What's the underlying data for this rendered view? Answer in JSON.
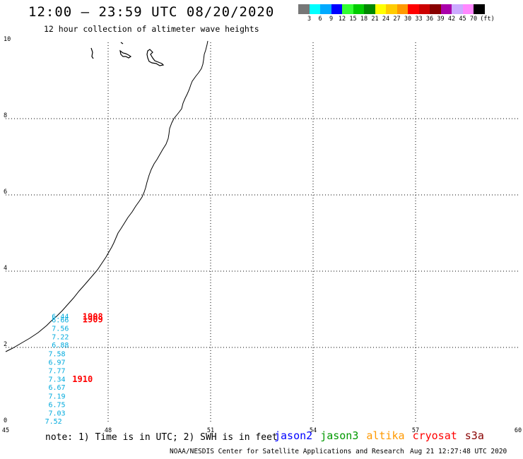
{
  "header": {
    "title": "12:00 – 23:59 UTC 08/20/2020",
    "subtitle": "12 hour collection of altimeter wave heights"
  },
  "legend": {
    "unit": "(ft)",
    "bins": [
      {
        "label": "3",
        "color": "#777777"
      },
      {
        "label": "6",
        "color": "#00ffff"
      },
      {
        "label": "9",
        "color": "#00aaff"
      },
      {
        "label": "12",
        "color": "#0000ff"
      },
      {
        "label": "15",
        "color": "#33ff33"
      },
      {
        "label": "18",
        "color": "#00cc00"
      },
      {
        "label": "21",
        "color": "#008800"
      },
      {
        "label": "24",
        "color": "#ffff00"
      },
      {
        "label": "27",
        "color": "#ffcc00"
      },
      {
        "label": "30",
        "color": "#ff9900"
      },
      {
        "label": "33",
        "color": "#ff0000"
      },
      {
        "label": "36",
        "color": "#cc0000"
      },
      {
        "label": "39",
        "color": "#880000"
      },
      {
        "label": "42",
        "color": "#aa00aa"
      },
      {
        "label": "45",
        "color": "#ccaaff"
      },
      {
        "label": "70",
        "color": "#ff88ff"
      },
      {
        "label": "",
        "color": "#000000"
      }
    ]
  },
  "map": {
    "x_axis": {
      "ticks": [
        "45",
        "48",
        "51",
        "54",
        "57",
        "60"
      ],
      "range": [
        45,
        60
      ]
    },
    "y_axis": {
      "ticks": [
        "0",
        "2",
        "4",
        "6",
        "8",
        "10"
      ],
      "range": [
        0,
        10
      ]
    },
    "swh_readings": [
      {
        "value": "6.44",
        "lon": 46.6,
        "lat": 2.82
      },
      {
        "value": "6.66",
        "lon": 46.6,
        "lat": 2.73
      },
      {
        "value": "7.56",
        "lon": 46.6,
        "lat": 2.51
      },
      {
        "value": "7.22",
        "lon": 46.6,
        "lat": 2.29
      },
      {
        "value": "6.88",
        "lon": 46.6,
        "lat": 2.07
      },
      {
        "value": "7.58",
        "lon": 46.5,
        "lat": 1.84
      },
      {
        "value": "6.97",
        "lon": 46.5,
        "lat": 1.62
      },
      {
        "value": "7.77",
        "lon": 46.5,
        "lat": 1.4
      },
      {
        "value": "7.34",
        "lon": 46.5,
        "lat": 1.18
      },
      {
        "value": "6.67",
        "lon": 46.5,
        "lat": 0.96
      },
      {
        "value": "7.19",
        "lon": 46.5,
        "lat": 0.73
      },
      {
        "value": "6.75",
        "lon": 46.5,
        "lat": 0.51
      },
      {
        "value": "7.03",
        "lon": 46.5,
        "lat": 0.29
      },
      {
        "value": "7.52",
        "lon": 46.4,
        "lat": 0.07
      }
    ],
    "time_labels": [
      {
        "value": "1908",
        "lon": 47.55,
        "lat": 2.81
      },
      {
        "value": "1909",
        "lon": 47.55,
        "lat": 2.73
      },
      {
        "value": "1910",
        "lon": 47.25,
        "lat": 1.17
      }
    ]
  },
  "footer": {
    "note": "note: 1) Time is in UTC; 2) SWH is in feet",
    "satellites": [
      {
        "name": "jason2",
        "color": "#0000ff"
      },
      {
        "name": "jason3",
        "color": "#009900"
      },
      {
        "name": "altika",
        "color": "#ff9900"
      },
      {
        "name": "cryosat",
        "color": "#ff0000"
      },
      {
        "name": "s3a",
        "color": "#880000"
      }
    ],
    "credit": "NOAA/NESDIS Center for Satellite Applications and Research",
    "timestamp": "Aug 21 12:27:48 UTC 2020"
  }
}
